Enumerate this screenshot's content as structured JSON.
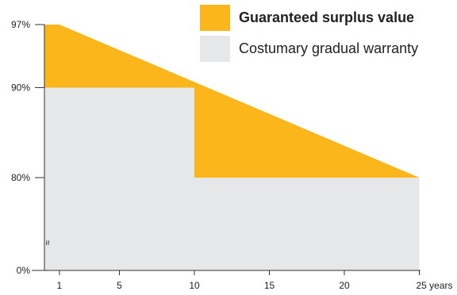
{
  "chart_data": {
    "type": "area",
    "x_unit": "years",
    "x_ticks": [
      {
        "value": 1,
        "label": "1"
      },
      {
        "value": 5,
        "label": "5"
      },
      {
        "value": 10,
        "label": "10"
      },
      {
        "value": 15,
        "label": "15"
      },
      {
        "value": 20,
        "label": "20"
      },
      {
        "value": 25,
        "label": "25 years"
      }
    ],
    "y_ticks": [
      {
        "value": 0,
        "label": "0%"
      },
      {
        "value": 80,
        "label": "80%"
      },
      {
        "value": 90,
        "label": "90%"
      },
      {
        "value": 97,
        "label": "97%"
      }
    ],
    "axis_break_mark": "≈",
    "y_axis_broken": true,
    "xlim": [
      0,
      25
    ],
    "series": [
      {
        "name": "Guaranteed surplus value",
        "color": "#FBB61B",
        "points": [
          {
            "x": 0,
            "y": 97
          },
          {
            "x": 1,
            "y": 97
          },
          {
            "x": 25,
            "y": 80
          }
        ]
      },
      {
        "name": "Costumary gradual warranty",
        "color": "#E6E7E8",
        "points": [
          {
            "x": 0,
            "y": 90
          },
          {
            "x": 10,
            "y": 90
          },
          {
            "x": 10,
            "y": 80
          },
          {
            "x": 25,
            "y": 80
          }
        ]
      }
    ],
    "legend": "top-right",
    "grid": false
  }
}
